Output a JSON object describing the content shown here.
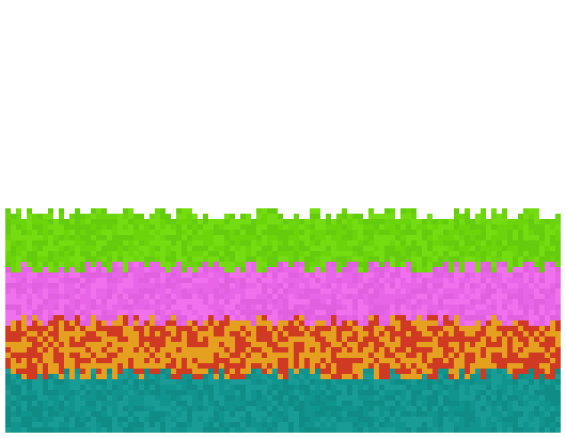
{
  "palette": {
    "background": "#ffffff",
    "green": "#6cd40a",
    "magenta": "#e865e8",
    "red": "#d03a22",
    "orange": "#e6a020",
    "teal": "#12948e"
  },
  "bands": [
    {
      "name": "green-band",
      "colors": [
        "#6cd40a",
        "#64cc0c",
        "#74dc10"
      ]
    },
    {
      "name": "magenta-band",
      "colors": [
        "#e865e8",
        "#e060e0",
        "#f070ee"
      ]
    },
    {
      "name": "red-orange-band",
      "colors": [
        "#d03a22",
        "#e6a020",
        "#e39a1e"
      ]
    },
    {
      "name": "teal-band",
      "colors": [
        "#12948e",
        "#0f8c86",
        "#1a9c96"
      ]
    }
  ]
}
